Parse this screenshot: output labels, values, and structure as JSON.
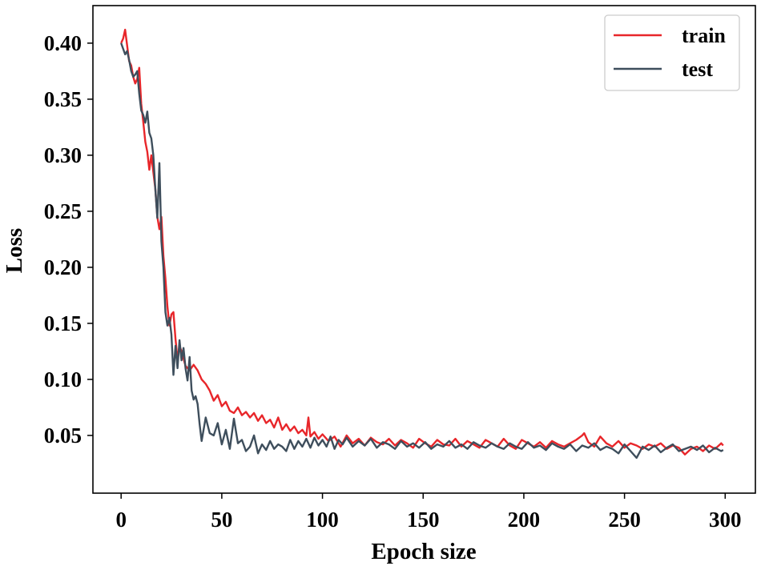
{
  "chart_data": {
    "type": "line",
    "title": "",
    "xlabel": "Epoch size",
    "ylabel": "Loss",
    "xlim": [
      -14,
      315
    ],
    "ylim": [
      -0.0015,
      0.4335
    ],
    "xticks": [
      0,
      50,
      100,
      150,
      200,
      250,
      300
    ],
    "xtick_labels": [
      "0",
      "50",
      "100",
      "150",
      "200",
      "250",
      "300"
    ],
    "yticks": [
      0.05,
      0.1,
      0.15,
      0.2,
      0.25,
      0.3,
      0.35,
      0.4
    ],
    "ytick_labels": [
      "0.05",
      "0.10",
      "0.15",
      "0.20",
      "0.25",
      "0.30",
      "0.35",
      "0.40"
    ],
    "grid": false,
    "legend_position": "top-right",
    "colors": {
      "train": "#e8262a",
      "test": "#3e4e5c"
    },
    "series": [
      {
        "name": "train",
        "color": "#e8262a",
        "x": [
          0,
          1,
          2,
          3,
          4,
          5,
          6,
          7,
          8,
          9,
          10,
          11,
          12,
          13,
          14,
          15,
          16,
          17,
          18,
          19,
          20,
          21,
          22,
          23,
          24,
          25,
          26,
          27,
          28,
          29,
          30,
          32,
          34,
          36,
          38,
          40,
          42,
          44,
          46,
          48,
          50,
          52,
          54,
          56,
          58,
          60,
          62,
          64,
          66,
          68,
          70,
          72,
          74,
          76,
          78,
          80,
          82,
          84,
          86,
          88,
          90,
          92,
          93,
          94,
          96,
          98,
          100,
          103,
          106,
          109,
          112,
          115,
          118,
          121,
          124,
          127,
          130,
          133,
          136,
          139,
          142,
          145,
          148,
          151,
          154,
          157,
          160,
          163,
          166,
          169,
          172,
          175,
          178,
          181,
          184,
          187,
          190,
          193,
          196,
          199,
          202,
          205,
          208,
          211,
          214,
          217,
          220,
          223,
          226,
          229,
          230,
          232,
          235,
          238,
          241,
          244,
          247,
          250,
          253,
          256,
          259,
          262,
          265,
          268,
          271,
          274,
          277,
          280,
          283,
          286,
          289,
          292,
          295,
          298,
          299
        ],
        "values": [
          0.4,
          0.404,
          0.412,
          0.398,
          0.384,
          0.38,
          0.37,
          0.364,
          0.368,
          0.378,
          0.346,
          0.33,
          0.312,
          0.303,
          0.287,
          0.3,
          0.285,
          0.27,
          0.245,
          0.234,
          0.245,
          0.21,
          0.19,
          0.165,
          0.148,
          0.158,
          0.16,
          0.136,
          0.118,
          0.13,
          0.125,
          0.112,
          0.108,
          0.113,
          0.108,
          0.1,
          0.096,
          0.09,
          0.081,
          0.086,
          0.076,
          0.08,
          0.072,
          0.07,
          0.075,
          0.068,
          0.071,
          0.066,
          0.07,
          0.063,
          0.068,
          0.061,
          0.064,
          0.057,
          0.066,
          0.055,
          0.06,
          0.054,
          0.058,
          0.052,
          0.055,
          0.05,
          0.066,
          0.049,
          0.053,
          0.047,
          0.051,
          0.045,
          0.049,
          0.04,
          0.05,
          0.043,
          0.047,
          0.041,
          0.048,
          0.044,
          0.042,
          0.047,
          0.041,
          0.046,
          0.043,
          0.039,
          0.047,
          0.043,
          0.04,
          0.046,
          0.042,
          0.041,
          0.047,
          0.04,
          0.045,
          0.042,
          0.039,
          0.046,
          0.043,
          0.04,
          0.047,
          0.041,
          0.038,
          0.046,
          0.043,
          0.04,
          0.044,
          0.039,
          0.045,
          0.042,
          0.04,
          0.043,
          0.046,
          0.05,
          0.052,
          0.044,
          0.04,
          0.049,
          0.043,
          0.04,
          0.045,
          0.039,
          0.043,
          0.041,
          0.038,
          0.042,
          0.04,
          0.043,
          0.038,
          0.041,
          0.039,
          0.033,
          0.038,
          0.04,
          0.036,
          0.041,
          0.038,
          0.043,
          0.041
        ]
      },
      {
        "name": "test",
        "color": "#3e4e5c",
        "x": [
          0,
          1,
          2,
          3,
          4,
          5,
          6,
          7,
          8,
          9,
          10,
          11,
          12,
          13,
          14,
          15,
          16,
          17,
          18,
          19,
          20,
          21,
          22,
          23,
          24,
          25,
          26,
          27,
          28,
          29,
          30,
          31,
          32,
          33,
          34,
          35,
          36,
          37,
          38,
          39,
          40,
          42,
          44,
          46,
          48,
          50,
          52,
          54,
          56,
          58,
          60,
          62,
          64,
          66,
          68,
          70,
          72,
          74,
          76,
          78,
          80,
          82,
          84,
          86,
          88,
          90,
          92,
          94,
          96,
          98,
          100,
          102,
          104,
          106,
          108,
          110,
          112,
          115,
          118,
          121,
          124,
          127,
          130,
          133,
          136,
          139,
          142,
          145,
          148,
          151,
          154,
          157,
          160,
          163,
          166,
          169,
          172,
          175,
          178,
          181,
          184,
          187,
          190,
          193,
          196,
          199,
          202,
          205,
          208,
          211,
          214,
          217,
          220,
          223,
          226,
          229,
          232,
          235,
          238,
          241,
          244,
          247,
          250,
          253,
          256,
          259,
          262,
          265,
          268,
          271,
          274,
          277,
          280,
          283,
          286,
          289,
          292,
          295,
          298,
          299
        ],
        "values": [
          0.4,
          0.395,
          0.39,
          0.393,
          0.385,
          0.375,
          0.37,
          0.372,
          0.375,
          0.355,
          0.34,
          0.336,
          0.329,
          0.339,
          0.32,
          0.315,
          0.3,
          0.27,
          0.244,
          0.293,
          0.223,
          0.2,
          0.16,
          0.148,
          0.155,
          0.14,
          0.104,
          0.13,
          0.11,
          0.135,
          0.117,
          0.128,
          0.11,
          0.099,
          0.12,
          0.09,
          0.082,
          0.085,
          0.078,
          0.06,
          0.045,
          0.066,
          0.052,
          0.05,
          0.061,
          0.042,
          0.055,
          0.038,
          0.065,
          0.043,
          0.046,
          0.036,
          0.04,
          0.05,
          0.034,
          0.042,
          0.037,
          0.045,
          0.038,
          0.042,
          0.04,
          0.036,
          0.046,
          0.038,
          0.045,
          0.04,
          0.047,
          0.039,
          0.048,
          0.041,
          0.046,
          0.04,
          0.049,
          0.038,
          0.046,
          0.042,
          0.048,
          0.04,
          0.045,
          0.041,
          0.047,
          0.039,
          0.044,
          0.042,
          0.038,
          0.045,
          0.04,
          0.043,
          0.039,
          0.044,
          0.038,
          0.042,
          0.04,
          0.045,
          0.039,
          0.042,
          0.038,
          0.044,
          0.041,
          0.039,
          0.043,
          0.04,
          0.038,
          0.043,
          0.04,
          0.038,
          0.044,
          0.039,
          0.041,
          0.037,
          0.043,
          0.04,
          0.038,
          0.042,
          0.036,
          0.041,
          0.039,
          0.043,
          0.037,
          0.04,
          0.038,
          0.034,
          0.042,
          0.036,
          0.03,
          0.04,
          0.037,
          0.041,
          0.035,
          0.039,
          0.042,
          0.036,
          0.038,
          0.04,
          0.037,
          0.041,
          0.035,
          0.039,
          0.036,
          0.037
        ]
      }
    ]
  }
}
